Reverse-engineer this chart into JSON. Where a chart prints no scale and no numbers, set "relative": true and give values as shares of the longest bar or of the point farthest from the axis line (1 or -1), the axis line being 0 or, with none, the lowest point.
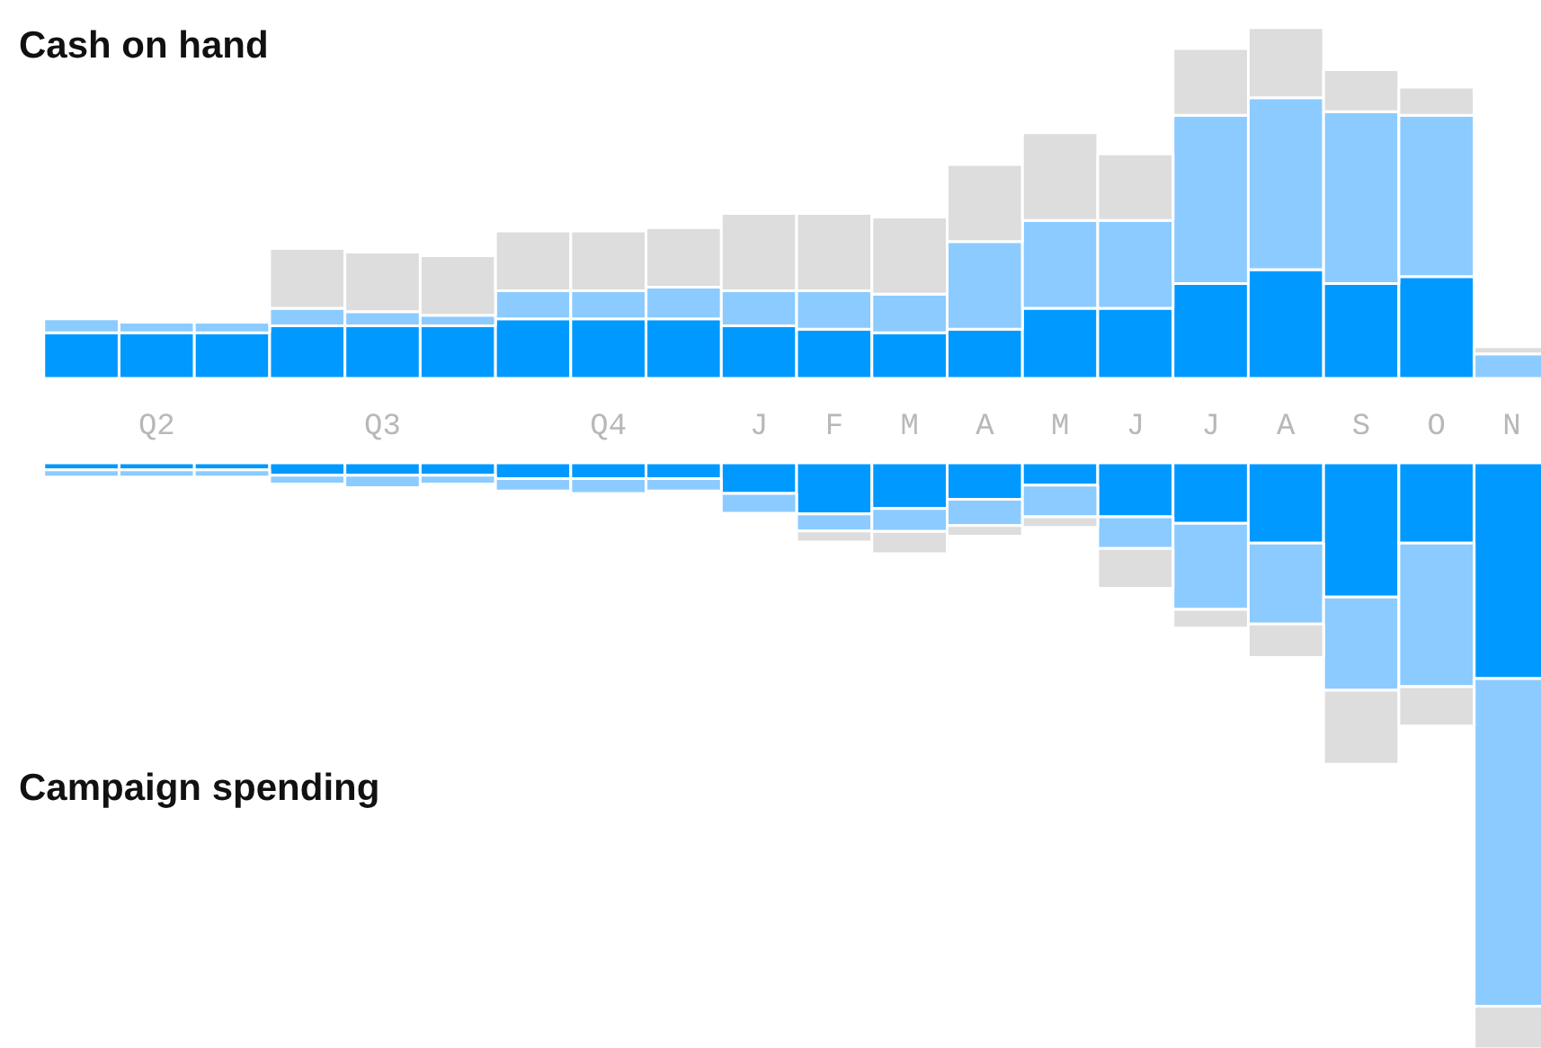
{
  "chart_data": [
    {
      "type": "bar",
      "title": "Cash on hand",
      "relative": true,
      "stacked": true,
      "categories": [
        null,
        "Q2",
        null,
        null,
        "Q3",
        null,
        null,
        "Q4",
        null,
        "J",
        "F",
        "M",
        "A",
        "M",
        "J",
        "J",
        "A",
        "S",
        "O",
        "N"
      ],
      "series": [
        {
          "color": "#0099ff",
          "values": [
            0.13,
            0.13,
            0.13,
            0.15,
            0.15,
            0.15,
            0.17,
            0.17,
            0.17,
            0.15,
            0.14,
            0.13,
            0.14,
            0.2,
            0.2,
            0.27,
            0.31,
            0.27,
            0.29,
            0
          ]
        },
        {
          "color": "#8ccbff",
          "values": [
            0.04,
            0.03,
            0.03,
            0.05,
            0.04,
            0.03,
            0.08,
            0.08,
            0.09,
            0.1,
            0.11,
            0.11,
            0.25,
            0.25,
            0.25,
            0.48,
            0.49,
            0.49,
            0.46,
            0.07
          ]
        },
        {
          "color": "#dddddd",
          "values": [
            0,
            0,
            0,
            0.17,
            0.17,
            0.17,
            0.17,
            0.17,
            0.17,
            0.22,
            0.22,
            0.22,
            0.22,
            0.25,
            0.19,
            0.19,
            0.2,
            0.12,
            0.08,
            0.02
          ]
        }
      ]
    },
    {
      "type": "bar",
      "title": "Campaign spending",
      "relative": true,
      "stacked": true,
      "categories": [
        null,
        null,
        null,
        null,
        null,
        null,
        null,
        null,
        null,
        null,
        null,
        null,
        null,
        null,
        null,
        null,
        null,
        null,
        null,
        null
      ],
      "series": [
        {
          "color": "#0099ff",
          "values": [
            -0.012,
            -0.012,
            -0.012,
            -0.021,
            -0.021,
            -0.021,
            -0.027,
            -0.027,
            -0.027,
            -0.052,
            -0.087,
            -0.078,
            -0.062,
            -0.038,
            -0.092,
            -0.103,
            -0.137,
            -0.229,
            -0.137,
            -0.368
          ]
        },
        {
          "color": "#8ccbff",
          "values": [
            -0.012,
            -0.012,
            -0.012,
            -0.015,
            -0.021,
            -0.015,
            -0.021,
            -0.025,
            -0.021,
            -0.034,
            -0.029,
            -0.039,
            -0.045,
            -0.054,
            -0.054,
            -0.147,
            -0.138,
            -0.159,
            -0.245,
            -0.559
          ]
        },
        {
          "color": "#dddddd",
          "values": [
            0,
            0,
            0,
            0,
            0,
            0,
            0,
            0,
            0,
            0,
            -0.019,
            -0.038,
            -0.018,
            -0.018,
            -0.068,
            -0.032,
            -0.057,
            -0.126,
            -0.067,
            -0.073
          ]
        }
      ]
    }
  ]
}
